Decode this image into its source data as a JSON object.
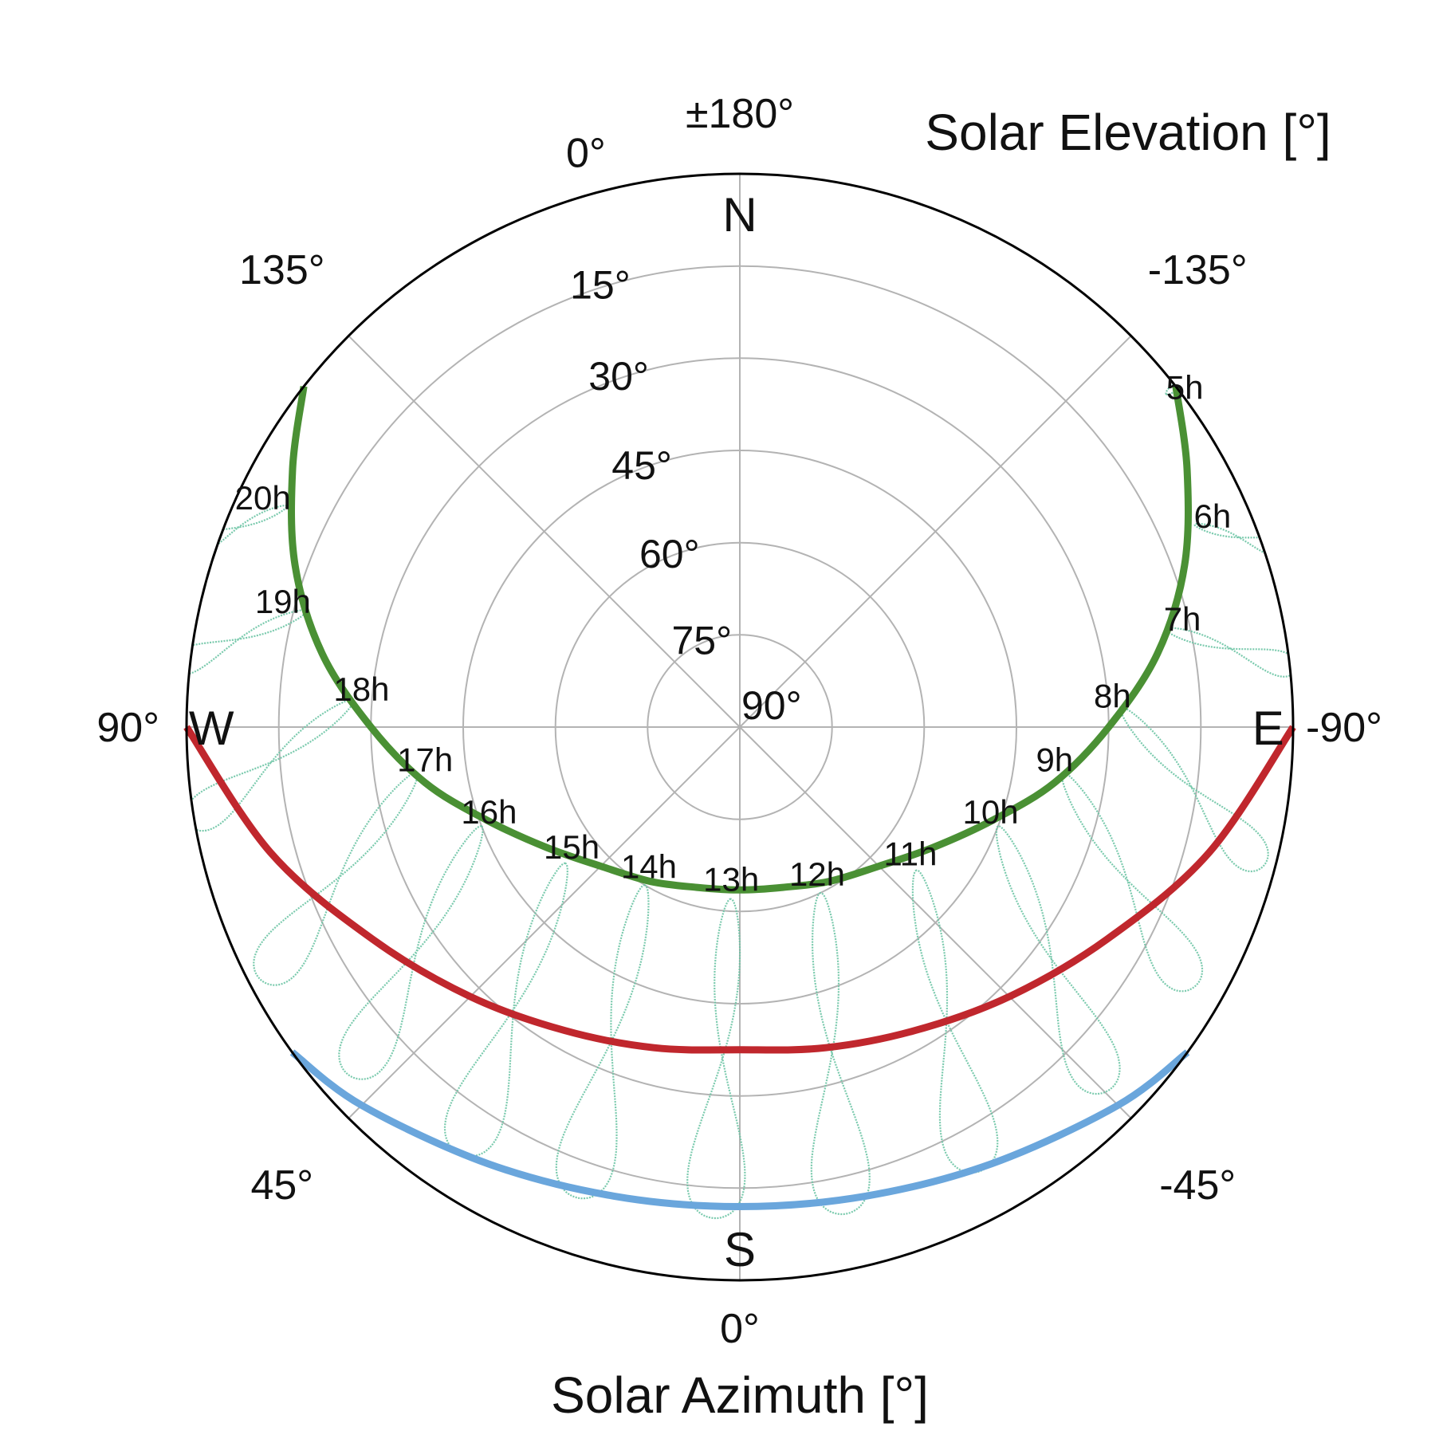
{
  "chart_data": {
    "type": "polar-line",
    "title": "Solar Elevation [°]",
    "xlabel": "Solar Azimuth [°]",
    "radial_axis": {
      "quantity": "elevation",
      "center": 90,
      "edge": 0,
      "rings": [
        15,
        30,
        45,
        60,
        75,
        90
      ],
      "ring_labels": [
        "15°",
        "30°",
        "45°",
        "60°",
        "75°",
        "90°"
      ]
    },
    "angular_axis": {
      "spokes_every": 45,
      "labels": [
        {
          "az": 0,
          "text": "0°"
        },
        {
          "az": 45,
          "text": "45°"
        },
        {
          "az": 90,
          "text": "90°"
        },
        {
          "az": 135,
          "text": "135°"
        },
        {
          "az": 180,
          "text": "±180°"
        },
        {
          "az": -135,
          "text": "-135°"
        },
        {
          "az": -90,
          "text": "-90°"
        },
        {
          "az": -45,
          "text": "-45°"
        },
        {
          "az": 180,
          "text": "0°",
          "secondary": true
        }
      ],
      "compass": [
        {
          "az": 180,
          "text": "N"
        },
        {
          "az": 0,
          "text": "S"
        },
        {
          "az": 90,
          "text": "W"
        },
        {
          "az": -90,
          "text": "E"
        }
      ]
    },
    "grid": true,
    "colors": {
      "grid": "#b3b3b3",
      "boundary": "#000000",
      "summer": "#4a9034",
      "equinox": "#c0272d",
      "winter": "#6aa6dc",
      "analemma": "#6cc4a4"
    },
    "series": [
      {
        "key": "summer",
        "color": "#4a9034",
        "points": [
          {
            "az": -128,
            "el": 0
          },
          {
            "az": -120,
            "el": 6
          },
          {
            "az": -110,
            "el": 13
          },
          {
            "az": -100,
            "el": 21
          },
          {
            "az": -90,
            "el": 30
          },
          {
            "az": -80,
            "el": 38
          },
          {
            "az": -70,
            "el": 46
          },
          {
            "az": -58,
            "el": 53
          },
          {
            "az": -45,
            "el": 58
          },
          {
            "az": -30,
            "el": 61
          },
          {
            "az": -15,
            "el": 63
          },
          {
            "az": 0,
            "el": 63.5
          },
          {
            "az": 15,
            "el": 63
          },
          {
            "az": 30,
            "el": 61
          },
          {
            "az": 45,
            "el": 58
          },
          {
            "az": 58,
            "el": 53
          },
          {
            "az": 70,
            "el": 46
          },
          {
            "az": 80,
            "el": 38
          },
          {
            "az": 90,
            "el": 30
          },
          {
            "az": 100,
            "el": 21
          },
          {
            "az": 110,
            "el": 13
          },
          {
            "az": 120,
            "el": 6
          },
          {
            "az": 128,
            "el": 0
          }
        ]
      },
      {
        "key": "equinox",
        "color": "#c0272d",
        "points": [
          {
            "az": -90,
            "el": 0
          },
          {
            "az": -75,
            "el": 11
          },
          {
            "az": -60,
            "el": 21
          },
          {
            "az": -45,
            "el": 28
          },
          {
            "az": -30,
            "el": 33
          },
          {
            "az": -15,
            "el": 36
          },
          {
            "az": 0,
            "el": 37.5
          },
          {
            "az": 15,
            "el": 36
          },
          {
            "az": 30,
            "el": 33
          },
          {
            "az": 45,
            "el": 28
          },
          {
            "az": 60,
            "el": 21
          },
          {
            "az": 75,
            "el": 11
          },
          {
            "az": 90,
            "el": 0
          }
        ]
      },
      {
        "key": "winter",
        "color": "#6aa6dc",
        "points": [
          {
            "az": -54,
            "el": 0
          },
          {
            "az": -45,
            "el": 3
          },
          {
            "az": -30,
            "el": 8
          },
          {
            "az": -15,
            "el": 11
          },
          {
            "az": 0,
            "el": 12
          },
          {
            "az": 15,
            "el": 11
          },
          {
            "az": 30,
            "el": 8
          },
          {
            "az": 45,
            "el": 3
          },
          {
            "az": 54,
            "el": 0
          }
        ]
      }
    ],
    "analemmas": [
      {
        "hour": "5h",
        "top_az": -128,
        "top_el": 2,
        "bot_az": -128,
        "bot_el": -4
      },
      {
        "hour": "6h",
        "top_az": -114,
        "top_el": 9,
        "bot_az": -108,
        "bot_el": -3
      },
      {
        "hour": "7h",
        "top_az": -103,
        "top_el": 19,
        "bot_az": -96,
        "bot_el": -1
      },
      {
        "hour": "8h",
        "top_az": -93,
        "top_el": 28,
        "bot_az": -75,
        "bot_el": 2
      },
      {
        "hour": "9h",
        "top_az": -82,
        "top_el": 37,
        "bot_az": -60,
        "bot_el": 5
      },
      {
        "hour": "10h",
        "top_az": -69,
        "top_el": 45,
        "bot_az": -45,
        "bot_el": 6
      },
      {
        "hour": "11h",
        "top_az": -51,
        "top_el": 53,
        "bot_az": -28,
        "bot_el": 8
      },
      {
        "hour": "12h",
        "top_az": -26,
        "top_el": 60,
        "bot_az": -12,
        "bot_el": 9
      },
      {
        "hour": "13h",
        "top_az": 3,
        "top_el": 62,
        "bot_az": 3,
        "bot_el": 10
      },
      {
        "hour": "14h",
        "top_az": 31,
        "top_el": 60,
        "bot_az": 19,
        "bot_el": 9
      },
      {
        "hour": "15h",
        "top_az": 52,
        "top_el": 54,
        "bot_az": 33,
        "bot_el": 7
      },
      {
        "hour": "16h",
        "top_az": 69,
        "top_el": 45,
        "bot_az": 48,
        "bot_el": 5
      },
      {
        "hour": "17h",
        "top_az": 82,
        "top_el": 37,
        "bot_az": 62,
        "bot_el": 2
      },
      {
        "hour": "18h",
        "top_az": 94,
        "top_el": 27,
        "bot_az": 80,
        "bot_el": -1
      },
      {
        "hour": "19h",
        "top_az": 105,
        "top_el": 17,
        "bot_az": 96,
        "bot_el": -3
      },
      {
        "hour": "20h",
        "top_az": 116,
        "top_el": 8,
        "bot_az": 108,
        "bot_el": -4
      }
    ]
  }
}
